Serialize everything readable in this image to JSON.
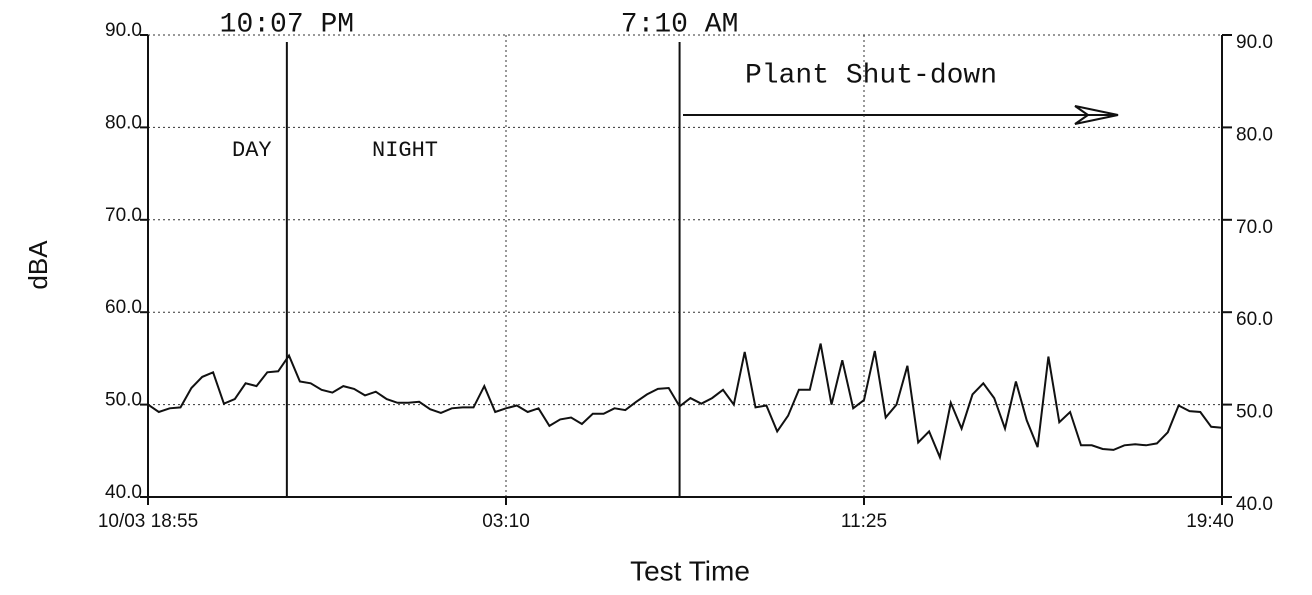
{
  "chart_data": {
    "type": "line",
    "y_label": "dBA",
    "x_label": "Test Time",
    "x": [
      0,
      0.25,
      0.5,
      0.75,
      1,
      1.25,
      1.5,
      1.75,
      2,
      2.25,
      2.5,
      2.75,
      3,
      3.25,
      3.5,
      3.75,
      4,
      4.25,
      4.5,
      4.75,
      5,
      5.25,
      5.5,
      5.75,
      6,
      6.25,
      6.5,
      6.75,
      7,
      7.25,
      7.5,
      7.75,
      8,
      8.25,
      8.5,
      8.75,
      9,
      9.25,
      9.5,
      9.75,
      10,
      10.25,
      10.5,
      10.75,
      11,
      11.25,
      11.5,
      11.75,
      12,
      12.25,
      12.5,
      12.75,
      13,
      13.25,
      13.5,
      13.75,
      14,
      14.25,
      14.5,
      14.75,
      15,
      15.25,
      15.5,
      15.75,
      16,
      16.25,
      16.5,
      16.75,
      17,
      17.25,
      17.5,
      17.75,
      18,
      18.25,
      18.5,
      18.75,
      19,
      19.25,
      19.5,
      19.75,
      20,
      20.25,
      20.5,
      20.75,
      21,
      21.25,
      21.5,
      21.75,
      22,
      22.25,
      22.5,
      22.75,
      23,
      23.25,
      23.5,
      23.75,
      24,
      24.25,
      24.5,
      24.75
    ],
    "series": [
      {
        "name": "dBA",
        "color": "#111111",
        "values": [
          50.0,
          49.2,
          49.6,
          49.7,
          51.8,
          53.0,
          53.5,
          50.1,
          50.6,
          52.3,
          52.0,
          53.5,
          53.6,
          55.3,
          52.5,
          52.3,
          51.6,
          51.3,
          52.0,
          51.7,
          51.0,
          51.4,
          50.6,
          50.2,
          50.2,
          50.3,
          49.5,
          49.1,
          49.6,
          49.7,
          49.7,
          52.0,
          49.2,
          49.6,
          49.9,
          49.2,
          49.6,
          47.7,
          48.4,
          48.6,
          47.9,
          49.0,
          49.0,
          49.6,
          49.4,
          50.3,
          51.1,
          51.7,
          51.8,
          49.8,
          50.7,
          50.1,
          50.7,
          51.6,
          50.0,
          55.7,
          49.7,
          49.9,
          47.1,
          48.8,
          51.6,
          51.6,
          56.6,
          50.0,
          54.8,
          49.6,
          50.5,
          55.8,
          48.6,
          50.0,
          54.2,
          45.9,
          47.1,
          44.3,
          50.2,
          47.4,
          51.1,
          52.3,
          50.7,
          47.4,
          52.5,
          48.3,
          45.4,
          55.2,
          48.1,
          49.2,
          45.6,
          45.6,
          45.2,
          45.1,
          45.6,
          45.7,
          45.6,
          45.8,
          47.0,
          49.9,
          49.3,
          49.2,
          47.6,
          47.5
        ]
      }
    ],
    "xlim": [
      0,
      24.75
    ],
    "xticks": [
      {
        "value": 0,
        "label": "10/03 18:55"
      },
      {
        "value": 8.25,
        "label": "03:10"
      },
      {
        "value": 16.5,
        "label": "11:25"
      },
      {
        "value": 24.75,
        "label": "19:40"
      }
    ],
    "ylim": [
      40,
      90
    ],
    "yticks": [
      {
        "value": 40,
        "label": "40.0"
      },
      {
        "value": 50,
        "label": "50.0"
      },
      {
        "value": 60,
        "label": "60.0"
      },
      {
        "value": 70,
        "label": "70.0"
      },
      {
        "value": 80,
        "label": "80.0"
      },
      {
        "value": 90,
        "label": "90.0"
      }
    ],
    "y2lim": [
      40,
      90
    ],
    "y2ticks": [
      {
        "value": 40,
        "label": "40.0"
      },
      {
        "value": 50,
        "label": "50.0"
      },
      {
        "value": 60,
        "label": "60.0"
      },
      {
        "value": 70,
        "label": "70.0"
      },
      {
        "value": 80,
        "label": "80.0"
      },
      {
        "value": 90,
        "label": "90.0"
      }
    ],
    "grid": true,
    "vlines": [
      {
        "x": 3.2,
        "label": "10:07 PM"
      },
      {
        "x": 12.25,
        "label": "7:10 AM"
      }
    ],
    "annotations": [
      "DAY",
      "NIGHT",
      "Plant Shut-down"
    ]
  }
}
